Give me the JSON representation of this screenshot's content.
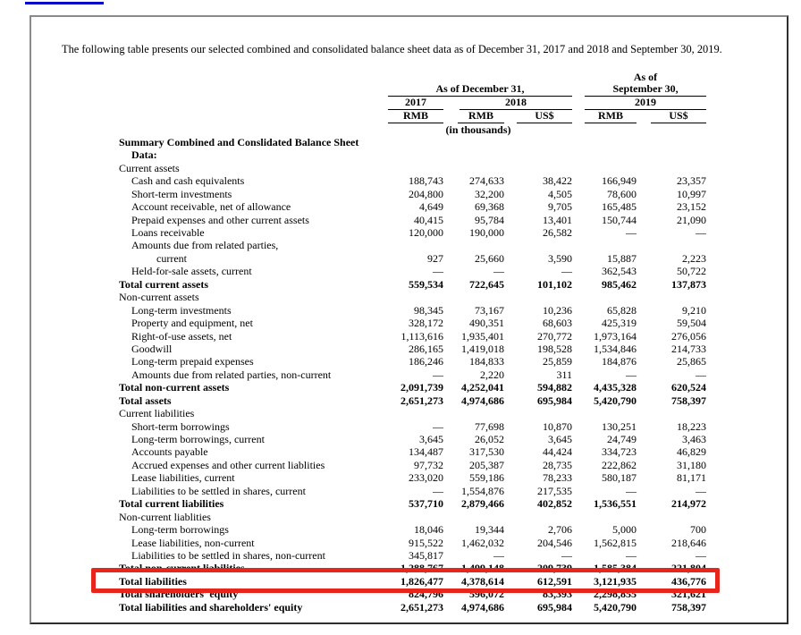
{
  "colors": {
    "highlight_red": "#e8251c",
    "link_blue": "#0000cd"
  },
  "intro_text": "The following table presents our selected combined and consolidated balance sheet data as of December 31, 2017 and 2018 and September 30, 2019.",
  "annotation": {
    "type": "highlight-rectangle",
    "color": "#e8251c",
    "highlights_row": "Total liabilities"
  },
  "table": {
    "header": {
      "group1": "As of December 31,",
      "group2_line1": "As of",
      "group2_line2": "September 30,",
      "years": [
        "2017",
        "2018",
        "2019"
      ],
      "units": [
        "RMB",
        "RMB",
        "US$",
        "RMB",
        "US$"
      ],
      "units_note": "(in thousands)"
    },
    "rows": [
      {
        "label": "Summary Combined and Conslidated Balance Sheet",
        "indent": 0,
        "bold": true,
        "values": [
          "",
          "",
          "",
          "",
          ""
        ]
      },
      {
        "label": "Data:",
        "indent": 1,
        "bold": true,
        "values": [
          "",
          "",
          "",
          "",
          ""
        ]
      },
      {
        "label": "Current assets",
        "indent": 0,
        "bold": false,
        "values": [
          "",
          "",
          "",
          "",
          ""
        ]
      },
      {
        "label": "Cash and cash equivalents",
        "indent": 1,
        "bold": false,
        "values": [
          "188,743",
          "274,633",
          "38,422",
          "166,949",
          "23,357"
        ]
      },
      {
        "label": "Short-term investments",
        "indent": 1,
        "bold": false,
        "values": [
          "204,800",
          "32,200",
          "4,505",
          "78,600",
          "10,997"
        ]
      },
      {
        "label": "Account receivable, net of allowance",
        "indent": 1,
        "bold": false,
        "values": [
          "4,649",
          "69,368",
          "9,705",
          "165,485",
          "23,152"
        ]
      },
      {
        "label": "Prepaid expenses and other current assets",
        "indent": 1,
        "bold": false,
        "values": [
          "40,415",
          "95,784",
          "13,401",
          "150,744",
          "21,090"
        ]
      },
      {
        "label": "Loans receivable",
        "indent": 1,
        "bold": false,
        "values": [
          "120,000",
          "190,000",
          "26,582",
          "—",
          "—"
        ]
      },
      {
        "label": "Amounts due from related parties,",
        "indent": 1,
        "bold": false,
        "values": [
          "",
          "",
          "",
          "",
          ""
        ]
      },
      {
        "label": "current",
        "indent": 2,
        "bold": false,
        "values": [
          "927",
          "25,660",
          "3,590",
          "15,887",
          "2,223"
        ]
      },
      {
        "label": "Held-for-sale assets, current",
        "indent": 1,
        "bold": false,
        "values": [
          "—",
          "—",
          "—",
          "362,543",
          "50,722"
        ]
      },
      {
        "label": "Total current assets",
        "indent": 0,
        "bold": true,
        "values": [
          "559,534",
          "722,645",
          "101,102",
          "985,462",
          "137,873"
        ]
      },
      {
        "label": "Non-current assets",
        "indent": 0,
        "bold": false,
        "values": [
          "",
          "",
          "",
          "",
          ""
        ]
      },
      {
        "label": "Long-term investments",
        "indent": 1,
        "bold": false,
        "values": [
          "98,345",
          "73,167",
          "10,236",
          "65,828",
          "9,210"
        ]
      },
      {
        "label": "Property and equipment, net",
        "indent": 1,
        "bold": false,
        "values": [
          "328,172",
          "490,351",
          "68,603",
          "425,319",
          "59,504"
        ]
      },
      {
        "label": "Right-of-use assets, net",
        "indent": 1,
        "bold": false,
        "values": [
          "1,113,616",
          "1,935,401",
          "270,772",
          "1,973,164",
          "276,056"
        ]
      },
      {
        "label": "Goodwill",
        "indent": 1,
        "bold": false,
        "values": [
          "286,165",
          "1,419,018",
          "198,528",
          "1,534,846",
          "214,733"
        ]
      },
      {
        "label": "Long-term prepaid expenses",
        "indent": 1,
        "bold": false,
        "values": [
          "186,246",
          "184,833",
          "25,859",
          "184,876",
          "25,865"
        ]
      },
      {
        "label": "Amounts due from related parties, non-current",
        "indent": 1,
        "bold": false,
        "values": [
          "—",
          "2,220",
          "311",
          "—",
          "—"
        ]
      },
      {
        "label": "Total non-current assets",
        "indent": 0,
        "bold": true,
        "values": [
          "2,091,739",
          "4,252,041",
          "594,882",
          "4,435,328",
          "620,524"
        ]
      },
      {
        "label": "Total assets",
        "indent": 0,
        "bold": true,
        "values": [
          "2,651,273",
          "4,974,686",
          "695,984",
          "5,420,790",
          "758,397"
        ]
      },
      {
        "label": "Current liabilities",
        "indent": 0,
        "bold": false,
        "values": [
          "",
          "",
          "",
          "",
          ""
        ]
      },
      {
        "label": "Short-term borrowings",
        "indent": 1,
        "bold": false,
        "values": [
          "—",
          "77,698",
          "10,870",
          "130,251",
          "18,223"
        ]
      },
      {
        "label": "Long-term borrowings, current",
        "indent": 1,
        "bold": false,
        "values": [
          "3,645",
          "26,052",
          "3,645",
          "24,749",
          "3,463"
        ]
      },
      {
        "label": "Accounts payable",
        "indent": 1,
        "bold": false,
        "values": [
          "134,487",
          "317,530",
          "44,424",
          "334,723",
          "46,829"
        ]
      },
      {
        "label": "Accrued expenses and other current liablities",
        "indent": 1,
        "bold": false,
        "values": [
          "97,732",
          "205,387",
          "28,735",
          "222,862",
          "31,180"
        ]
      },
      {
        "label": "Lease liabilities, current",
        "indent": 1,
        "bold": false,
        "values": [
          "233,020",
          "559,186",
          "78,233",
          "580,187",
          "81,171"
        ]
      },
      {
        "label": "Liabilities to be settled in shares, current",
        "indent": 1,
        "bold": false,
        "values": [
          "—",
          "1,554,876",
          "217,535",
          "—",
          "—"
        ]
      },
      {
        "label": "Total current liabilities",
        "indent": 0,
        "bold": true,
        "values": [
          "537,710",
          "2,879,466",
          "402,852",
          "1,536,551",
          "214,972"
        ]
      },
      {
        "label": "Non-current liablities",
        "indent": 0,
        "bold": false,
        "values": [
          "",
          "",
          "",
          "",
          ""
        ]
      },
      {
        "label": "Long-term borrowings",
        "indent": 1,
        "bold": false,
        "values": [
          "18,046",
          "19,344",
          "2,706",
          "5,000",
          "700"
        ]
      },
      {
        "label": "Lease liabilities, non-current",
        "indent": 1,
        "bold": false,
        "values": [
          "915,522",
          "1,462,032",
          "204,546",
          "1,562,815",
          "218,646"
        ]
      },
      {
        "label": "Liabilities to be settled in shares, non-current",
        "indent": 1,
        "bold": false,
        "values": [
          "345,817",
          "—",
          "—",
          "—",
          "—"
        ]
      },
      {
        "label": "Total non-current liabilities",
        "indent": 0,
        "bold": true,
        "values": [
          "1,288,767",
          "1,499,148",
          "209,739",
          "1,585,384",
          "221,804"
        ]
      },
      {
        "label": "Total liabilities",
        "indent": 0,
        "bold": true,
        "values": [
          "1,826,477",
          "4,378,614",
          "612,591",
          "3,121,935",
          "436,776"
        ]
      },
      {
        "label": "Total shareholders' equity",
        "indent": 0,
        "bold": true,
        "values": [
          "824,796",
          "596,072",
          "83,393",
          "2,298,855",
          "321,621"
        ]
      },
      {
        "label": "Total liabilities and shareholders' equity",
        "indent": 0,
        "bold": true,
        "values": [
          "2,651,273",
          "4,974,686",
          "695,984",
          "5,420,790",
          "758,397"
        ]
      }
    ]
  }
}
